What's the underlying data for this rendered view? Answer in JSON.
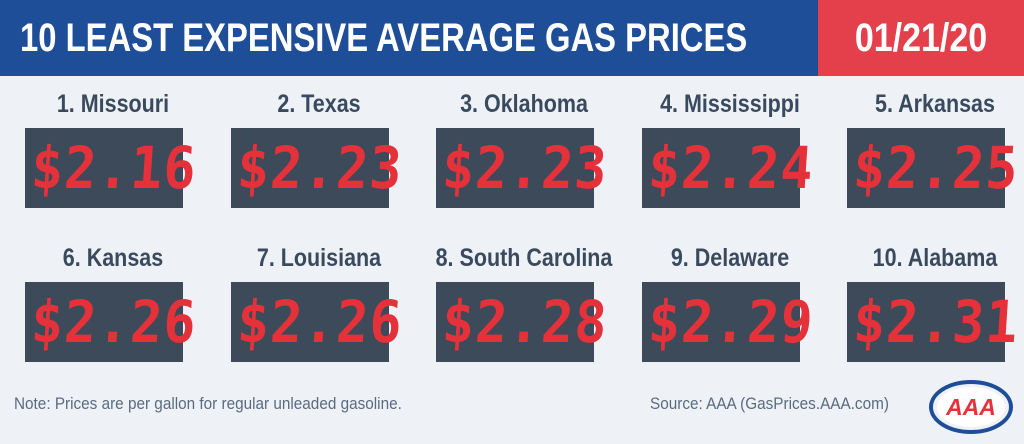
{
  "header": {
    "title": "10 LEAST EXPENSIVE AVERAGE GAS PRICES",
    "date": "01/21/20"
  },
  "colors": {
    "header_blue": "#1f4e99",
    "date_red": "#e4404b",
    "price_box": "#3d4a59",
    "price_digits": "#e5323a",
    "background": "#eef2f7"
  },
  "prices": [
    {
      "label": "1. Missouri",
      "price": "$2.16"
    },
    {
      "label": "2. Texas",
      "price": "$2.23"
    },
    {
      "label": "3. Oklahoma",
      "price": "$2.23"
    },
    {
      "label": "4. Mississippi",
      "price": "$2.24"
    },
    {
      "label": "5. Arkansas",
      "price": "$2.25"
    },
    {
      "label": "6. Kansas",
      "price": "$2.26"
    },
    {
      "label": "7. Louisiana",
      "price": "$2.26"
    },
    {
      "label": "8. South Carolina",
      "price": "$2.28"
    },
    {
      "label": "9. Delaware",
      "price": "$2.29"
    },
    {
      "label": "10. Alabama",
      "price": "$2.31"
    }
  ],
  "footer": {
    "note": "Note: Prices are per gallon for regular unleaded gasoline.",
    "source": "Source: AAA (GasPrices.AAA.com)",
    "logo_text": "AAA"
  }
}
